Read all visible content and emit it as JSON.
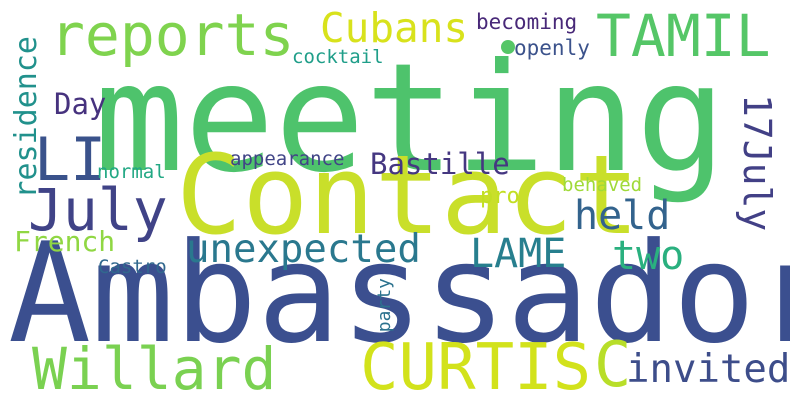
{
  "words": {
    "meeting": {
      "text": "meeting",
      "color": "#4ec36c"
    },
    "ambassador": {
      "text": "Ambassador",
      "color": "#3b4f8f"
    },
    "contact": {
      "text": "Contact",
      "color": "#c9df2a"
    },
    "reports": {
      "text": "reports",
      "color": "#7fd34e"
    },
    "tamil": {
      "text": "TAMIL",
      "color": "#55c667"
    },
    "cubans": {
      "text": "Cubans",
      "color": "#d8e21c"
    },
    "li": {
      "text": "LI",
      "color": "#3a528b"
    },
    "july": {
      "text": "July",
      "color": "#404387"
    },
    "july17": {
      "text": "17July",
      "color": "#424086"
    },
    "curtis": {
      "text": "CURTIS",
      "color": "#d2e21b"
    },
    "willard": {
      "text": "Willard",
      "color": "#7ad151"
    },
    "c": {
      "text": "C",
      "color": "#b8de29"
    },
    "unexpected": {
      "text": "unexpected",
      "color": "#2a788e"
    },
    "lame": {
      "text": "LAME",
      "color": "#277f8e"
    },
    "two": {
      "text": "two",
      "color": "#2ab07f"
    },
    "held": {
      "text": "held",
      "color": "#33638d"
    },
    "invited": {
      "text": "invited",
      "color": "#3d4d8a"
    },
    "bastille": {
      "text": "Bastille",
      "color": "#453781"
    },
    "day": {
      "text": "Day",
      "color": "#46327e"
    },
    "residence": {
      "text": "residence",
      "color": "#21918c"
    },
    "french": {
      "text": "French",
      "color": "#90d743"
    },
    "becoming": {
      "text": "becoming",
      "color": "#482878"
    },
    "openly": {
      "text": "openly",
      "color": "#3b528b"
    },
    "cocktail": {
      "text": "cocktail",
      "color": "#1f9e89"
    },
    "appearance": {
      "text": "appearance",
      "color": "#414487"
    },
    "normal": {
      "text": "normal",
      "color": "#22a884"
    },
    "behaved": {
      "text": "behaved",
      "color": "#a0da39"
    },
    "pro": {
      "text": "pro",
      "color": "#c2df23"
    },
    "castro": {
      "text": "Castro",
      "color": "#31688e"
    },
    "party": {
      "text": "party",
      "color": "#2c728e"
    }
  }
}
